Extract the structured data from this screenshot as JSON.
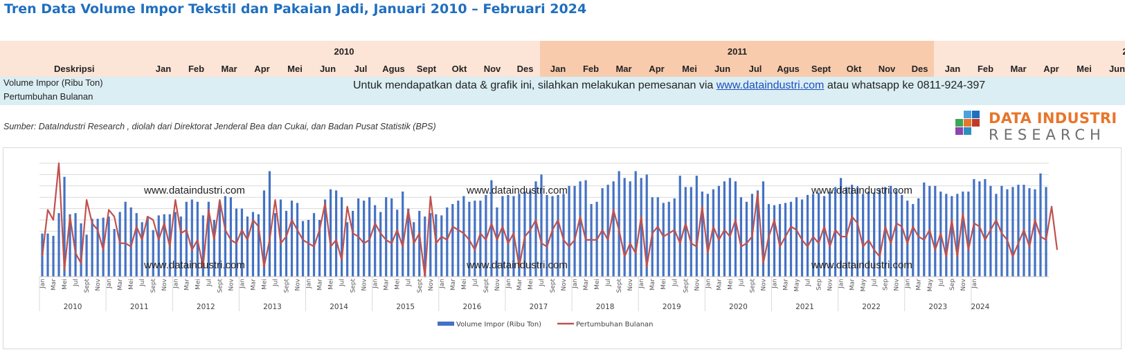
{
  "page_title": "Tren Data Volume Impor Tekstil dan Pakaian Jadi, Januari 2010 – Februari 2024",
  "table": {
    "years": [
      "2010",
      "2011",
      "2"
    ],
    "months": [
      "Jan",
      "Feb",
      "Mar",
      "Apr",
      "Mei",
      "Jun",
      "Jul",
      "Agus",
      "Sept",
      "Okt",
      "Nov",
      "Des",
      "Jan",
      "Feb",
      "Mar",
      "Apr",
      "Mei",
      "Jun",
      "Jul",
      "Agus",
      "Sept",
      "Okt",
      "Nov",
      "Des",
      "Jan",
      "Feb",
      "Mar",
      "Apr",
      "Mei",
      "Jun"
    ],
    "description_header": "Deskripsi",
    "rows": [
      "Volume Impor (Ribu Ton)",
      "Pertumbuhan Bulanan"
    ],
    "notice_before": "Untuk mendapatkan data & grafik ini, silahkan melakukan pemesanan via ",
    "notice_link": "www.dataindustri.com",
    "notice_after": " atau whatsapp ke 0811-924-397",
    "colors": {
      "band_light": "#fce4d6",
      "band_dark": "#f8cbad",
      "body": "#daeef3"
    }
  },
  "source_note": "Sumber: DataIndustri Research , diolah dari Direktorat Jenderal Bea dan Cukai, dan Badan Pusat Statistik (BPS)",
  "logo": {
    "line1": "DATA INDUSTRI",
    "line2": "RESEARCH"
  },
  "watermark": "www.dataindustri.com",
  "chart_data": {
    "type": "bar",
    "secondary_type": "line",
    "start": "2010-01",
    "end": "2024-02",
    "month_tick_labels": [
      "Jan",
      "Mar",
      "Mei",
      "Jul",
      "Sept",
      "Nov",
      "Jan",
      "Mar",
      "Mei",
      "Jul",
      "Sept",
      "Nov",
      "Jan",
      "Mar",
      "Mei",
      "Jul",
      "Sept",
      "Nov",
      "Jan",
      "Mar",
      "Mei",
      "Jul",
      "Sept",
      "Nov",
      "Jan",
      "Mar",
      "Mei",
      "Jul",
      "Sept",
      "Nov",
      "Jan",
      "Mar",
      "Mei",
      "Jul",
      "Sept",
      "Nov",
      "Jan",
      "Mar",
      "Mei",
      "Jul",
      "Sept",
      "Nov",
      "Jan",
      "Mar",
      "Mei",
      "Jul",
      "Sept",
      "Nov",
      "Jan",
      "Mar",
      "Mei",
      "Jul",
      "Sept",
      "Nov",
      "Jan",
      "Mar",
      "Mei",
      "Jul",
      "Sept",
      "Nov",
      "Jan",
      "Mar",
      "Mei",
      "Jul",
      "Sept",
      "Nov",
      "Jan",
      "Mar",
      "May",
      "Jul",
      "Sep",
      "Nov",
      "Jan",
      "Mar",
      "May",
      "Jul",
      "Sep",
      "Nov",
      "Jan",
      "Mar",
      "May",
      "Jul",
      "Sep",
      "Nov",
      "Jan"
    ],
    "year_labels": [
      "2010",
      "2011",
      "2012",
      "2013",
      "2014",
      "2015",
      "2016",
      "2017",
      "2018",
      "2019",
      "2020",
      "2021",
      "2022",
      "2023",
      "2024"
    ],
    "series": [
      {
        "name": "Volume Impor (Ribu Ton)",
        "color": "#4472c4",
        "values": [
          38,
          38,
          36,
          56,
          88,
          55,
          56,
          47,
          37,
          51,
          51,
          52,
          53,
          42,
          57,
          66,
          61,
          56,
          48,
          53,
          41,
          54,
          55,
          55,
          57,
          53,
          66,
          68,
          66,
          54,
          66,
          50,
          66,
          71,
          70,
          60,
          60,
          53,
          57,
          55,
          76,
          93,
          56,
          68,
          58,
          67,
          65,
          49,
          50,
          56,
          50,
          68,
          77,
          76,
          70,
          48,
          58,
          69,
          67,
          70,
          63,
          57,
          70,
          69,
          59,
          75,
          60,
          48,
          58,
          53,
          56,
          55,
          54,
          61,
          64,
          67,
          71,
          66,
          67,
          67,
          72,
          85,
          61,
          71,
          72,
          71,
          73,
          75,
          76,
          84,
          90,
          72,
          71,
          72,
          73,
          80,
          80,
          84,
          85,
          64,
          66,
          78,
          81,
          84,
          93,
          87,
          84,
          93,
          87,
          90,
          70,
          70,
          65,
          66,
          69,
          89,
          79,
          79,
          89,
          75,
          73,
          77,
          80,
          84,
          87,
          84,
          70,
          66,
          73,
          76,
          84,
          64,
          63,
          64,
          65,
          66,
          70,
          68,
          72,
          73,
          74,
          71,
          75,
          79,
          87,
          79,
          81,
          79,
          73,
          75,
          74,
          77,
          79,
          80,
          77,
          72,
          67,
          64,
          69,
          83,
          80,
          80,
          75,
          73,
          71,
          73,
          75,
          75,
          86,
          84,
          86,
          80,
          73,
          80,
          77,
          79,
          81,
          81,
          78,
          77,
          91,
          79
        ],
        "axis": "left"
      },
      {
        "name": "Pertumbuhan Bulanan",
        "color": "#c0504d",
        "values": [
          -6,
          8,
          5,
          22,
          -10,
          6,
          -5,
          -8,
          11,
          4,
          2,
          -4,
          8,
          6,
          -2,
          -2,
          -3,
          3,
          -1,
          6,
          5,
          -1,
          4,
          -3,
          11,
          1,
          2,
          -4,
          -1,
          -9,
          8,
          -1,
          11,
          2,
          -1,
          -2,
          2,
          -1,
          5,
          3,
          -9,
          -1,
          11,
          -2,
          0,
          5,
          2,
          -1,
          -2,
          -3,
          2,
          10,
          -3,
          -1,
          -7,
          9,
          1,
          0,
          -2,
          -1,
          4,
          1,
          -1,
          -2,
          2,
          -3,
          8,
          -2,
          1,
          -12,
          12,
          -2,
          0,
          -1,
          3,
          2,
          1,
          -1,
          -4,
          1,
          -1,
          4,
          -1,
          3,
          -2,
          1,
          -9,
          0,
          2,
          5,
          -2,
          -3,
          2,
          5,
          -1,
          -3,
          -1,
          6,
          -1,
          -1,
          -1,
          2,
          -1,
          8,
          2,
          -6,
          -2,
          -5,
          6,
          -9,
          1,
          3,
          0,
          1,
          2,
          -2,
          4,
          -2,
          -3,
          9,
          -5,
          3,
          -1,
          2,
          0,
          5,
          -3,
          -2,
          0,
          13,
          -8,
          0,
          5,
          -3,
          0,
          3,
          2,
          -1,
          -3,
          0,
          -2,
          3,
          -3,
          2,
          0,
          0,
          6,
          4,
          -3,
          -1,
          -4,
          -6,
          3,
          -2,
          4,
          3,
          -2,
          3,
          0,
          -1,
          2,
          -4,
          1,
          -6,
          5,
          -6,
          7,
          -4,
          4,
          3,
          -1,
          2,
          5,
          1,
          -1,
          -6,
          -2,
          2,
          -3,
          5,
          0,
          -1,
          9,
          -4
        ],
        "axis": "right"
      }
    ],
    "legend": {
      "position": "bottom",
      "entries": [
        "Volume Impor (Ribu Ton)",
        "Pertumbuhan Bulanan"
      ]
    },
    "grid": true
  }
}
